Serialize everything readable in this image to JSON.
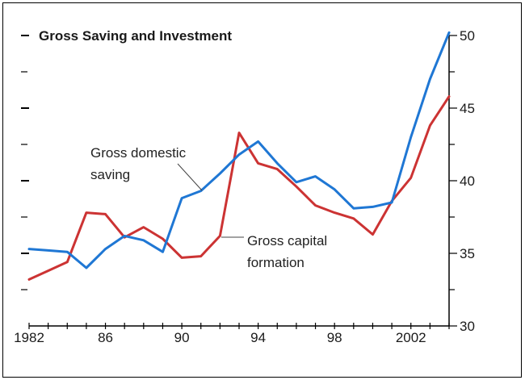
{
  "chart_data": {
    "type": "line",
    "title": "Gross Saving and Investment",
    "x": [
      1982,
      1983,
      1984,
      1985,
      1986,
      1987,
      1988,
      1989,
      1990,
      1991,
      1992,
      1993,
      1994,
      1995,
      1996,
      1997,
      1998,
      1999,
      2000,
      2001,
      2002,
      2003,
      2004
    ],
    "series": [
      {
        "name": "Gross domestic saving",
        "color": "#1f77d4",
        "values": [
          35.3,
          35.2,
          35.1,
          34.0,
          35.3,
          36.2,
          35.9,
          35.1,
          38.8,
          39.3,
          40.5,
          41.8,
          42.7,
          41.2,
          39.9,
          40.3,
          39.4,
          38.1,
          38.2,
          38.5,
          43.0,
          47.0,
          50.2
        ]
      },
      {
        "name": "Gross capital formation",
        "color": "#cc3333",
        "values": [
          33.2,
          33.8,
          34.4,
          37.8,
          37.7,
          36.1,
          36.8,
          36.0,
          34.7,
          34.8,
          36.2,
          43.3,
          41.2,
          40.8,
          39.6,
          38.3,
          37.8,
          37.4,
          36.3,
          38.6,
          40.2,
          43.8,
          45.8
        ]
      }
    ],
    "annotations": {
      "saving_line1": "Gross domestic",
      "saving_line2": "saving",
      "capital_line1": "Gross capital",
      "capital_line2": "formation"
    },
    "x_ticks": [
      "1982",
      "86",
      "90",
      "94",
      "98",
      "2002"
    ],
    "x_tick_values": [
      1982,
      1986,
      1990,
      1994,
      1998,
      2002
    ],
    "y_ticks": [
      30,
      35,
      40,
      45,
      50
    ],
    "y_tick_labels": [
      "30",
      "35",
      "40",
      "45",
      "50"
    ],
    "xlim": [
      1982,
      2004
    ],
    "ylim": [
      30,
      50
    ],
    "y_axis_side": "right",
    "grid": false,
    "legend": "none (inline labels)"
  }
}
